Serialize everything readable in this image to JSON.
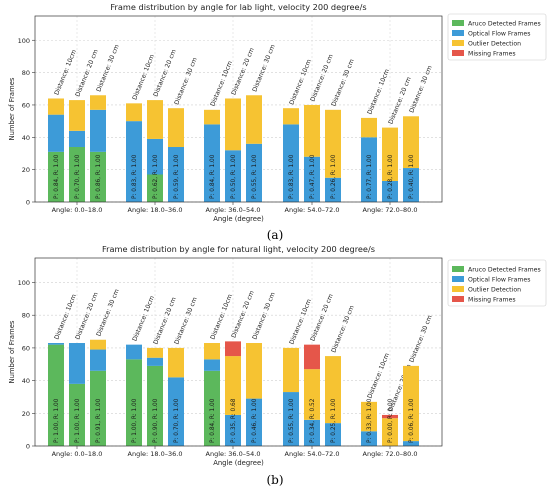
{
  "captions": [
    "(a)",
    "(b)"
  ],
  "colors": {
    "aruco": "#5cb85c",
    "optical": "#3d9bd8",
    "outlier": "#f6c332",
    "missing": "#e5564a"
  },
  "chart_data": [
    {
      "type": "bar",
      "stacked": true,
      "title": "Frame distribution by angle for lab light, velocity 200 degree/s",
      "xlabel": "Angle (degree)",
      "ylabel": "Number of Frames",
      "ylim": [
        0,
        115
      ],
      "yticks": [
        0,
        20,
        40,
        60,
        80,
        100
      ],
      "grid": true,
      "legend_position": "top-right",
      "categories": [
        "Angle: 0.0–18.0",
        "Angle: 18.0–36.0",
        "Angle: 36.0–54.0",
        "Angle: 54.0–72.0",
        "Angle: 72.0–80.0"
      ],
      "distances": [
        "Distance: 10cm",
        "Distance: 20 cm",
        "Distance: 30 cm"
      ],
      "series_names": [
        "Aruco Detected Frames",
        "Optical Flow Frames",
        "Outlier Detection",
        "Missing Frames"
      ],
      "bars": [
        {
          "group": 0,
          "aruco": 31,
          "optical": 23,
          "outlier": 10,
          "missing": 0,
          "label": "P: 0.84, R: 1.00"
        },
        {
          "group": 0,
          "aruco": 34,
          "optical": 10,
          "outlier": 19,
          "missing": 0,
          "label": "P: 0.70, R: 1.00"
        },
        {
          "group": 0,
          "aruco": 31,
          "optical": 26,
          "outlier": 9,
          "missing": 0,
          "label": "P: 0.86, R: 1.00"
        },
        {
          "group": 1,
          "aruco": 0,
          "optical": 50,
          "outlier": 11,
          "missing": 0,
          "label": "P: 0.83, R: 1.00"
        },
        {
          "group": 1,
          "aruco": 17,
          "optical": 22,
          "outlier": 24,
          "missing": 0,
          "label": "P: 0.62, R: 1.00"
        },
        {
          "group": 1,
          "aruco": 0,
          "optical": 34,
          "outlier": 24,
          "missing": 0,
          "label": "P: 0.59, R: 1.00"
        },
        {
          "group": 2,
          "aruco": 0,
          "optical": 48,
          "outlier": 9,
          "missing": 0,
          "label": "P: 0.84, R: 1.00"
        },
        {
          "group": 2,
          "aruco": 0,
          "optical": 32,
          "outlier": 32,
          "missing": 0,
          "label": "P: 0.50, R: 1.00"
        },
        {
          "group": 2,
          "aruco": 0,
          "optical": 36,
          "outlier": 30,
          "missing": 0,
          "label": "P: 0.55, R: 1.00"
        },
        {
          "group": 3,
          "aruco": 0,
          "optical": 48,
          "outlier": 10,
          "missing": 0,
          "label": "P: 0.83, R: 1.00"
        },
        {
          "group": 3,
          "aruco": 0,
          "optical": 28,
          "outlier": 32,
          "missing": 0,
          "label": "P: 0.47, R: 1.00"
        },
        {
          "group": 3,
          "aruco": 0,
          "optical": 15,
          "outlier": 42,
          "missing": 0,
          "label": "P: 0.26, R: 1.00"
        },
        {
          "group": 4,
          "aruco": 0,
          "optical": 40,
          "outlier": 12,
          "missing": 0,
          "label": "P: 0.77, R: 1.00"
        },
        {
          "group": 4,
          "aruco": 0,
          "optical": 13,
          "outlier": 33,
          "missing": 0,
          "label": "P: 0.28, R: 1.00"
        },
        {
          "group": 4,
          "aruco": 0,
          "optical": 21,
          "outlier": 32,
          "missing": 0,
          "label": "P: 0.40, R: 1.00"
        }
      ]
    },
    {
      "type": "bar",
      "stacked": true,
      "title": "Frame distribution by angle for natural light, velocity 200 degree/s",
      "xlabel": "Angle (degree)",
      "ylabel": "Number of Frames",
      "ylim": [
        0,
        115
      ],
      "yticks": [
        0,
        20,
        40,
        60,
        80,
        100
      ],
      "grid": true,
      "legend_position": "top-right",
      "categories": [
        "Angle: 0.0–18.0",
        "Angle: 18.0–36.0",
        "Angle: 36.0–54.0",
        "Angle: 54.0–72.0",
        "Angle: 72.0–80.0"
      ],
      "distances": [
        "Distance: 10cm",
        "Distance: 20 cm",
        "Distance: 30 cm"
      ],
      "series_names": [
        "Aruco Detected Frames",
        "Optical Flow Frames",
        "Outlier Detection",
        "Missing Frames"
      ],
      "bars": [
        {
          "group": 0,
          "aruco": 62,
          "optical": 1,
          "outlier": 0,
          "missing": 0,
          "label": "P: 1.00, R: 1.00"
        },
        {
          "group": 0,
          "aruco": 38,
          "optical": 25,
          "outlier": 0,
          "missing": 0,
          "label": "P: 1.00, R: 1.00"
        },
        {
          "group": 0,
          "aruco": 46,
          "optical": 13,
          "outlier": 6,
          "missing": 0,
          "label": "P: 0.91, R: 1.00"
        },
        {
          "group": 1,
          "aruco": 53,
          "optical": 9,
          "outlier": 0,
          "missing": 0,
          "label": "P: 1.00, R: 1.00"
        },
        {
          "group": 1,
          "aruco": 49,
          "optical": 5,
          "outlier": 6,
          "missing": 0,
          "label": "P: 0.90, R: 1.00"
        },
        {
          "group": 1,
          "aruco": 0,
          "optical": 42,
          "outlier": 18,
          "missing": 0,
          "label": "P: 0.70, R: 1.00"
        },
        {
          "group": 2,
          "aruco": 46,
          "optical": 7,
          "outlier": 10,
          "missing": 0,
          "label": "P: 0.84, R: 1.00"
        },
        {
          "group": 2,
          "aruco": 0,
          "optical": 19,
          "outlier": 36,
          "missing": 9,
          "label": "P: 0.35, R: 0.68"
        },
        {
          "group": 2,
          "aruco": 0,
          "optical": 29,
          "outlier": 34,
          "missing": 0,
          "label": "P: 0.46, R: 1.00"
        },
        {
          "group": 3,
          "aruco": 0,
          "optical": 33,
          "outlier": 27,
          "missing": 0,
          "label": "P: 0.55, R: 1.00"
        },
        {
          "group": 3,
          "aruco": 0,
          "optical": 16,
          "outlier": 31,
          "missing": 15,
          "label": "P: 0.34, R: 0.52"
        },
        {
          "group": 3,
          "aruco": 0,
          "optical": 14,
          "outlier": 41,
          "missing": 0,
          "label": "P: 0.25, R: 1.00"
        },
        {
          "group": 4,
          "aruco": 0,
          "optical": 9,
          "outlier": 18,
          "missing": 0,
          "label": "P: 0.33, R: 1.00"
        },
        {
          "group": 4,
          "aruco": 0,
          "optical": 0,
          "outlier": 17,
          "missing": 2,
          "label": "P: 0.00, R: 0.00"
        },
        {
          "group": 4,
          "aruco": 0,
          "optical": 3,
          "outlier": 46,
          "missing": 0,
          "label": "P: 0.06, R: 1.00"
        }
      ]
    }
  ]
}
